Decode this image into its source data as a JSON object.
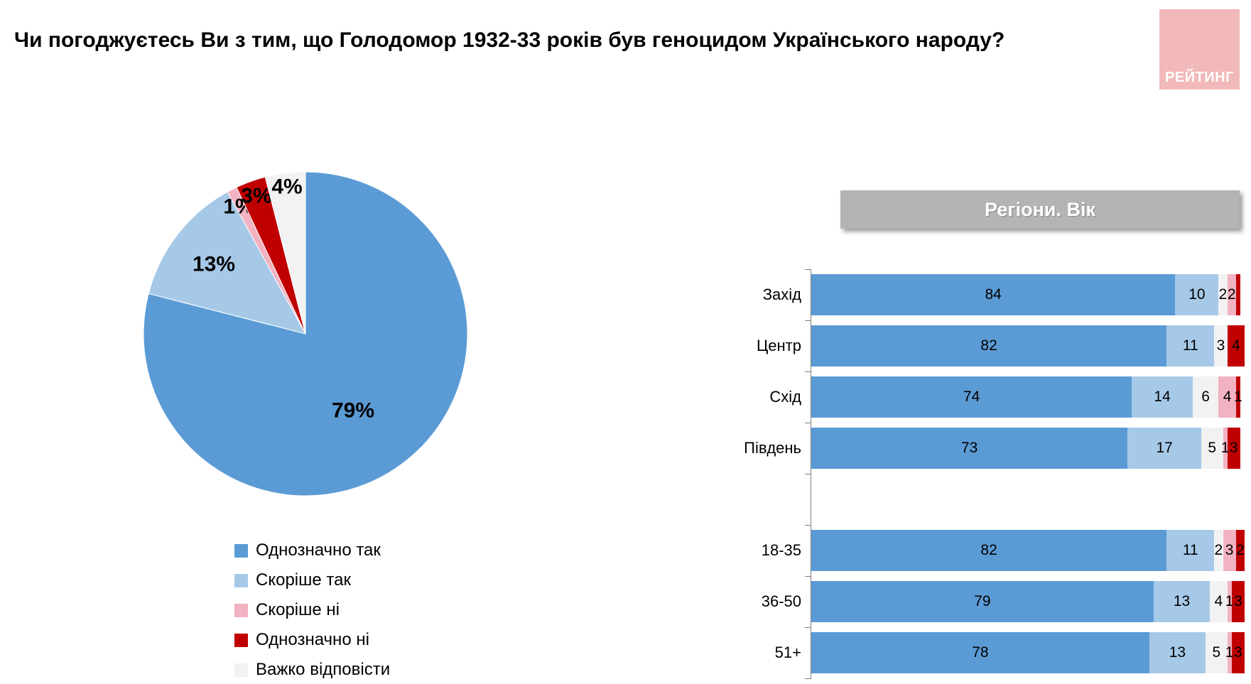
{
  "title": "Чи погоджуєтесь Ви з тим, що Голодомор 1932-33 років був геноцидом Українського народу?",
  "logo": {
    "text": "РЕЙТИНГ",
    "bg": "#F1B9B9"
  },
  "section_header": "Регіони. Вік",
  "colors": {
    "definitely_yes": "#5B9BD5",
    "rather_yes": "#A6C9E8",
    "rather_no": "#F2B2C1",
    "definitely_no": "#C00000",
    "hard_to_say": "#F2F2F2"
  },
  "legend": [
    {
      "label": "Однозначно так",
      "color_key": "definitely_yes"
    },
    {
      "label": "Скоріше так",
      "color_key": "rather_yes"
    },
    {
      "label": "Скоріше ні",
      "color_key": "rather_no"
    },
    {
      "label": "Однозначно ні",
      "color_key": "definitely_no"
    },
    {
      "label": "Важко відповісти",
      "color_key": "hard_to_say"
    }
  ],
  "chart_data": [
    {
      "type": "pie",
      "labels": [
        "Однозначно так",
        "Скоріше так",
        "Скоріше ні",
        "Однозначно ні",
        "Важко відповісти"
      ],
      "values": [
        79,
        13,
        1,
        3,
        4
      ],
      "data_labels": [
        "79%",
        "13%",
        "1%",
        "3%",
        "4%"
      ],
      "color_keys": [
        "definitely_yes",
        "rather_yes",
        "rather_no",
        "definitely_no",
        "hard_to_say"
      ],
      "start_angle_deg": 0,
      "direction": "clockwise",
      "legend_position": "bottom-left"
    },
    {
      "type": "bar",
      "orientation": "horizontal_stacked",
      "title": "Регіони. Вік",
      "categories": [
        "Захід",
        "Центр",
        "Схід",
        "Південь",
        "18-35",
        "36-50",
        "51+"
      ],
      "group_break_after": "Південь",
      "xlim": [
        0,
        100
      ],
      "series": [
        {
          "name": "Однозначно так",
          "color_key": "definitely_yes",
          "values": [
            84,
            82,
            74,
            73,
            82,
            79,
            78
          ]
        },
        {
          "name": "Скоріше так",
          "color_key": "rather_yes",
          "values": [
            10,
            11,
            14,
            17,
            11,
            13,
            13
          ]
        },
        {
          "name": "Важко відповісти",
          "color_key": "hard_to_say",
          "values": [
            2,
            3,
            6,
            5,
            2,
            4,
            5
          ]
        },
        {
          "name": "Скоріше ні",
          "color_key": "rather_no",
          "values": [
            2,
            0,
            4,
            1,
            3,
            1,
            1
          ]
        },
        {
          "name": "Однозначно ні",
          "color_key": "definitely_no",
          "values": [
            1,
            4,
            1,
            3,
            2,
            3,
            3
          ]
        }
      ],
      "hidden_value_labels": [
        {
          "category": "Захід",
          "series": "Однозначно ні"
        }
      ]
    }
  ]
}
